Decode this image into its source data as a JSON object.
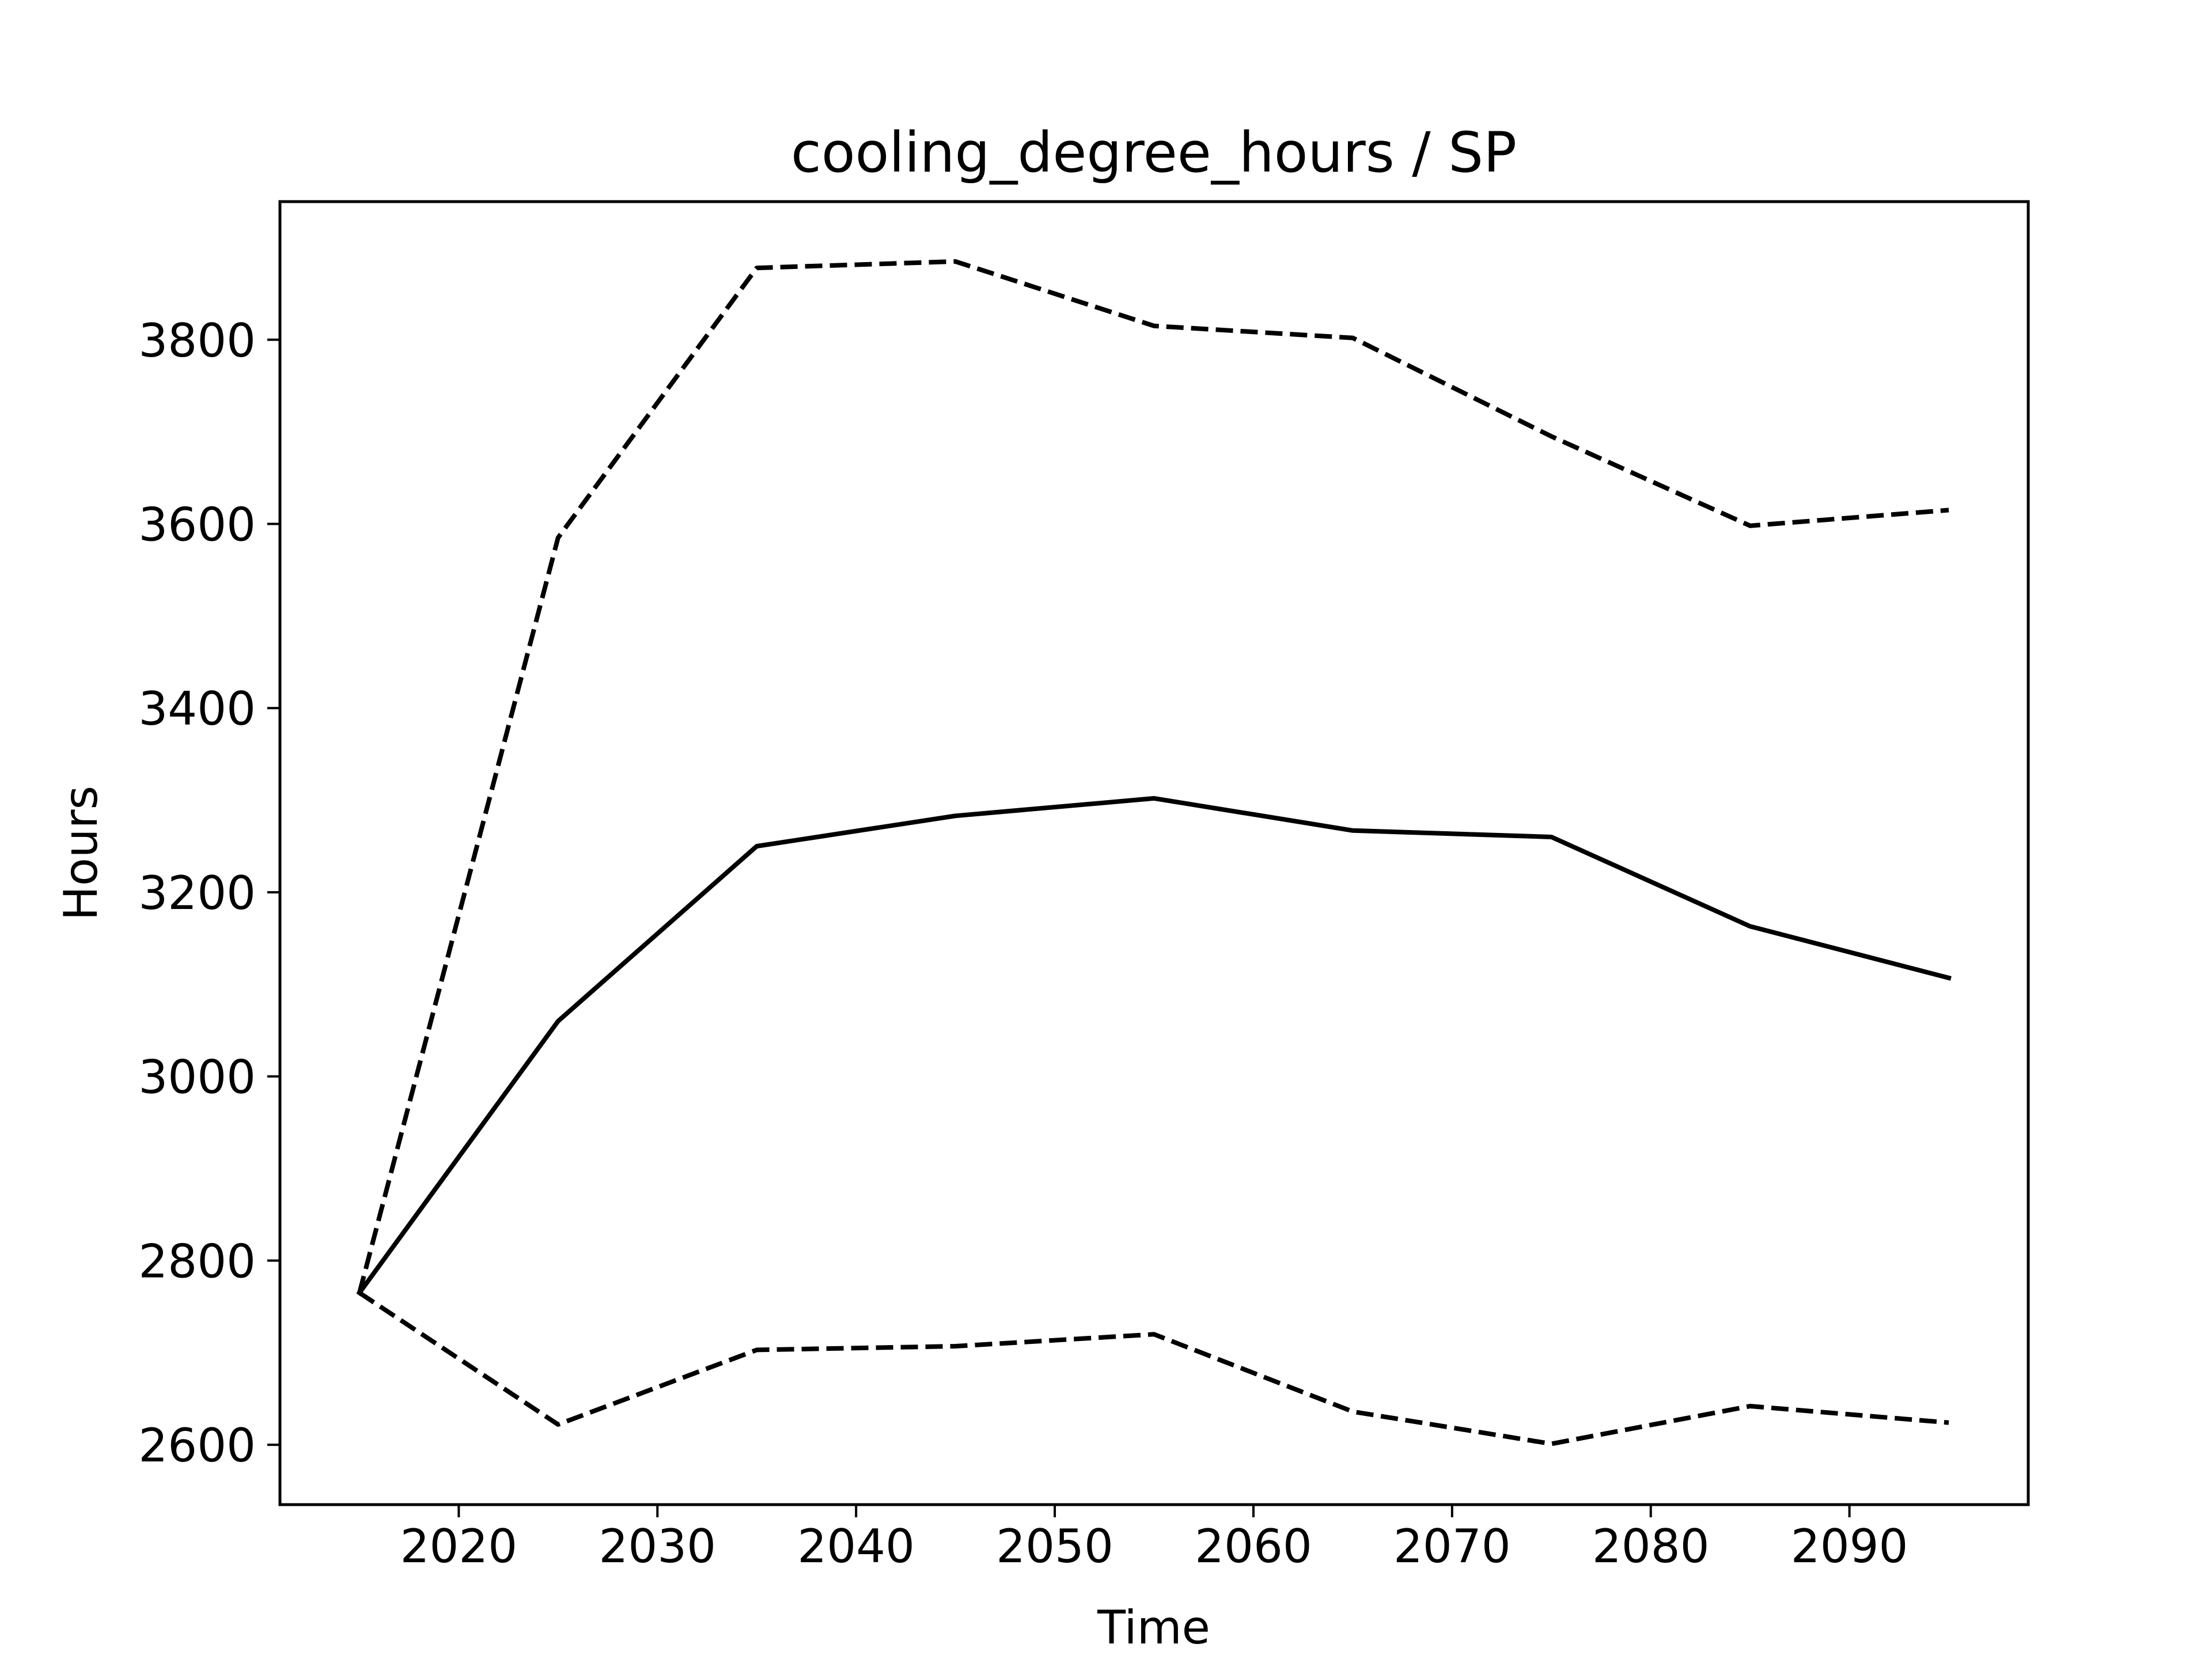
{
  "chart_data": {
    "type": "line",
    "title": "cooling_degree_hours / SP",
    "xlabel": "Time",
    "ylabel": "Hours",
    "xlim": [
      2011,
      2099
    ],
    "ylim": [
      2535,
      3950
    ],
    "xticks": [
      2020,
      2030,
      2040,
      2050,
      2060,
      2070,
      2080,
      2090
    ],
    "yticks": [
      2600,
      2800,
      3000,
      3200,
      3400,
      3600,
      3800
    ],
    "grid": false,
    "x": [
      2015,
      2025,
      2035,
      2045,
      2055,
      2065,
      2075,
      2085,
      2095
    ],
    "series": [
      {
        "style": "solid",
        "color": "#000000",
        "values": [
          2765,
          3060,
          3250,
          3283,
          3302,
          3267,
          3260,
          3163,
          3107
        ]
      },
      {
        "style": "dashed",
        "color": "#000000",
        "values": [
          2765,
          3585,
          3878,
          3885,
          3815,
          3802,
          3695,
          3598,
          3615
        ]
      },
      {
        "style": "dashed",
        "color": "#000000",
        "values": [
          2765,
          2622,
          2703,
          2707,
          2720,
          2636,
          2601,
          2642,
          2624
        ]
      }
    ]
  }
}
